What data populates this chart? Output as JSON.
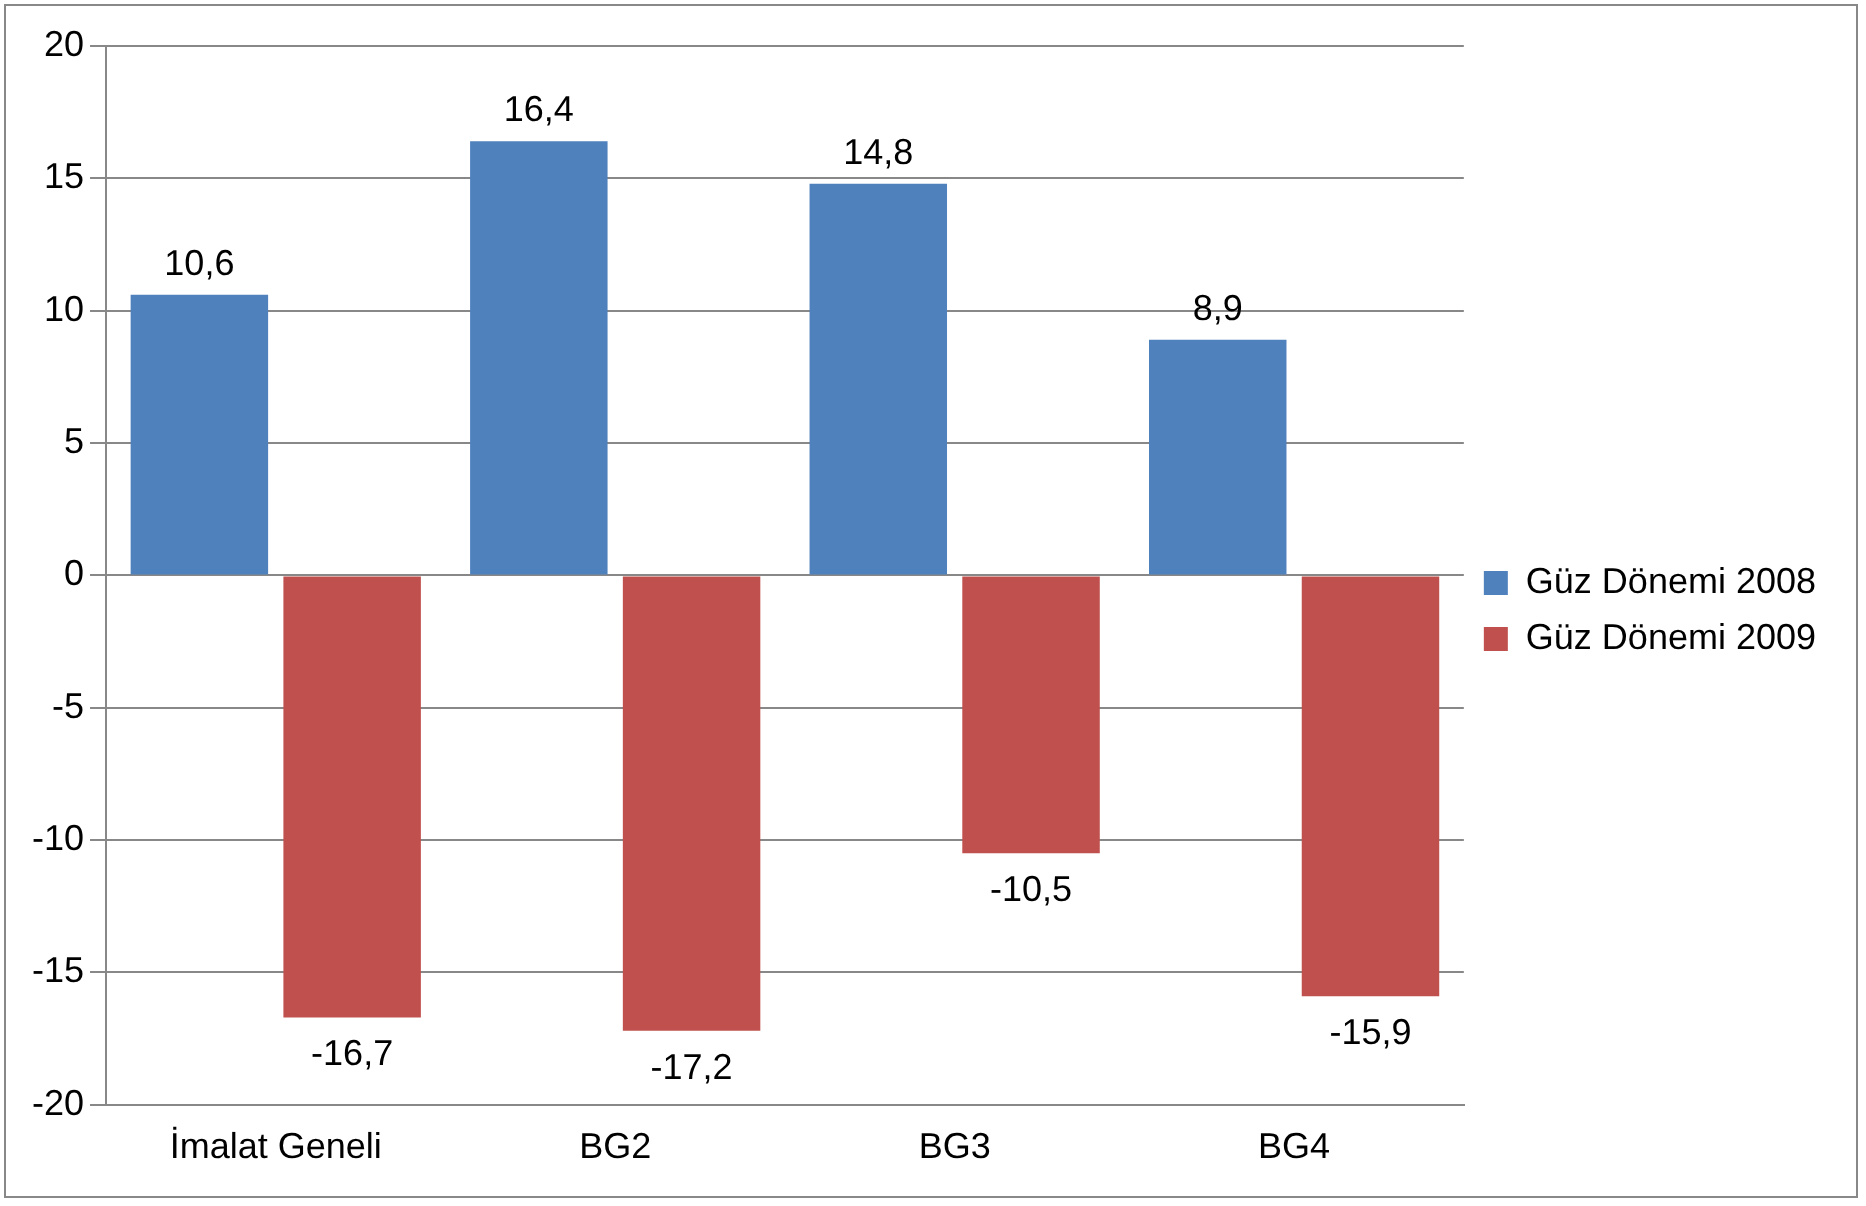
{
  "chart_data": {
    "type": "bar",
    "categories": [
      "İmalat Geneli",
      "BG2",
      "BG3",
      "BG4"
    ],
    "series": [
      {
        "name": "Güz Dönemi 2008",
        "color": "#4f81bd",
        "values": [
          10.6,
          16.4,
          14.8,
          8.9
        ],
        "value_labels": [
          "10,6",
          "16,4",
          "14,8",
          "8,9"
        ]
      },
      {
        "name": "Güz Dönemi 2009",
        "color": "#c0504d",
        "values": [
          -16.7,
          -17.2,
          -10.5,
          -15.9
        ],
        "value_labels": [
          "-16,7",
          "-17,2",
          "-10,5",
          "-15,9"
        ]
      }
    ],
    "ylim": [
      -20,
      20
    ],
    "yticks": [
      -20,
      -15,
      -10,
      -5,
      0,
      5,
      10,
      15,
      20
    ],
    "grid": "y",
    "legend": "right"
  }
}
